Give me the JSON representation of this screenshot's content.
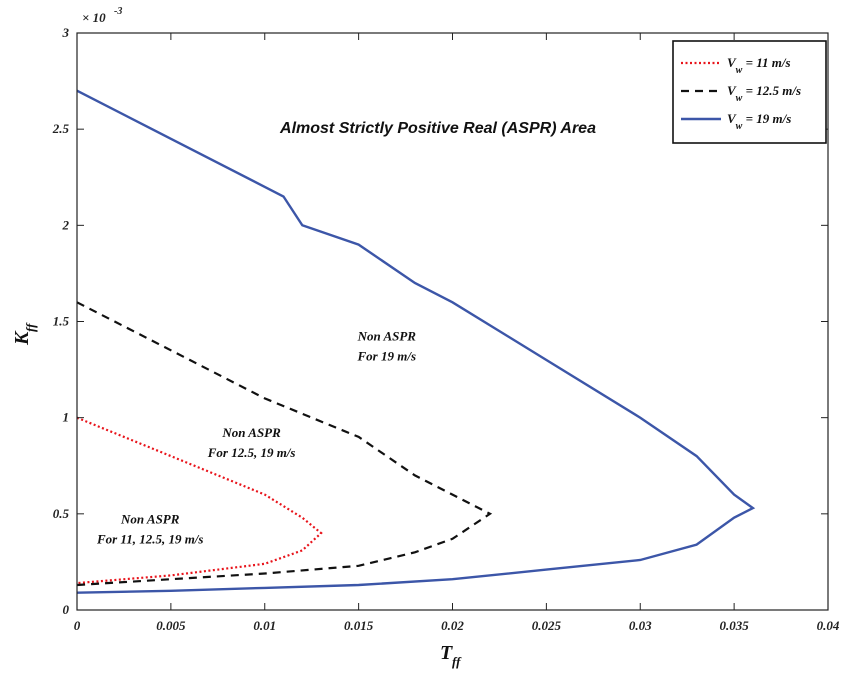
{
  "chart_data": {
    "type": "line",
    "title": "Almost Strictly Positive Real (ASPR) Area",
    "xlabel": {
      "main": "T",
      "sub": "ff"
    },
    "ylabel": {
      "main": "K",
      "sub": "ff"
    },
    "y_multiplier": {
      "base": "× 10",
      "exp": "-3"
    },
    "xlim": [
      0,
      0.04
    ],
    "ylim": [
      0,
      3
    ],
    "x_ticks": [
      0,
      0.005,
      0.01,
      0.015,
      0.02,
      0.025,
      0.03,
      0.035,
      0.04
    ],
    "x_tick_labels": [
      "0",
      "0.005",
      "0.01",
      "0.015",
      "0.02",
      "0.025",
      "0.03",
      "0.035",
      "0.04"
    ],
    "y_ticks": [
      0,
      0.5,
      1,
      1.5,
      2,
      2.5,
      3
    ],
    "y_tick_labels": [
      "0",
      "0.5",
      "1",
      "1.5",
      "2",
      "2.5",
      "3"
    ],
    "grid": false,
    "legend_position": "top-right",
    "series": [
      {
        "name": "V_w = 11 m/s",
        "legend_main": "V",
        "legend_sub": "w",
        "legend_rest": " = 11 m/s",
        "color": "#e8141b",
        "style": "dotted",
        "points": [
          [
            0,
            1.0
          ],
          [
            0.005,
            0.8
          ],
          [
            0.01,
            0.6
          ],
          [
            0.012,
            0.48
          ],
          [
            0.013,
            0.4
          ],
          [
            0.012,
            0.31
          ],
          [
            0.01,
            0.24
          ],
          [
            0.005,
            0.18
          ],
          [
            0,
            0.14
          ]
        ]
      },
      {
        "name": "V_w = 12.5 m/s",
        "legend_main": "V",
        "legend_sub": "w",
        "legend_rest": " = 12.5 m/s",
        "color": "#111111",
        "style": "dashed",
        "points": [
          [
            0,
            1.6
          ],
          [
            0.005,
            1.35
          ],
          [
            0.01,
            1.1
          ],
          [
            0.015,
            0.9
          ],
          [
            0.018,
            0.7
          ],
          [
            0.02,
            0.6
          ],
          [
            0.022,
            0.5
          ],
          [
            0.02,
            0.37
          ],
          [
            0.018,
            0.3
          ],
          [
            0.015,
            0.23
          ],
          [
            0.01,
            0.19
          ],
          [
            0.005,
            0.16
          ],
          [
            0,
            0.13
          ]
        ]
      },
      {
        "name": "V_w = 19 m/s",
        "legend_main": "V",
        "legend_sub": "w",
        "legend_rest": " = 19 m/s",
        "color": "#3c56a8",
        "style": "solid",
        "points": [
          [
            0,
            2.7
          ],
          [
            0.005,
            2.45
          ],
          [
            0.01,
            2.2
          ],
          [
            0.011,
            2.15
          ],
          [
            0.012,
            2.0
          ],
          [
            0.015,
            1.9
          ],
          [
            0.018,
            1.7
          ],
          [
            0.02,
            1.6
          ],
          [
            0.025,
            1.3
          ],
          [
            0.03,
            1.0
          ],
          [
            0.033,
            0.8
          ],
          [
            0.035,
            0.6
          ],
          [
            0.036,
            0.53
          ],
          [
            0.035,
            0.48
          ],
          [
            0.033,
            0.34
          ],
          [
            0.03,
            0.26
          ],
          [
            0.025,
            0.21
          ],
          [
            0.02,
            0.16
          ],
          [
            0.015,
            0.13
          ],
          [
            0.01,
            0.115
          ],
          [
            0.005,
            0.1
          ],
          [
            0,
            0.09
          ]
        ]
      }
    ],
    "annotations": [
      {
        "id": "anno-19",
        "lines": [
          "Non ASPR",
          "For 19 m/s"
        ],
        "x": 0.0165,
        "y": 1.4
      },
      {
        "id": "anno-125",
        "lines": [
          "Non ASPR",
          "For 12.5, 19 m/s"
        ],
        "x": 0.0093,
        "y": 0.9
      },
      {
        "id": "anno-11",
        "lines": [
          "Non ASPR",
          "For 11, 12.5, 19 m/s"
        ],
        "x": 0.0039,
        "y": 0.45
      }
    ]
  }
}
